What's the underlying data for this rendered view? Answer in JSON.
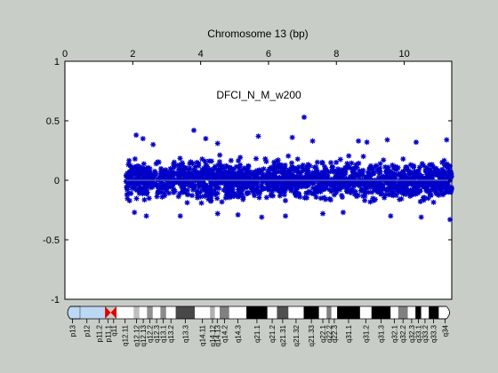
{
  "chart_data": {
    "type": "scatter",
    "title": "Chromosome 13 (bp)",
    "annotation": "DFCI_N_M_w200",
    "xlabel": "Chromosome 13 (bp)",
    "ylabel": "",
    "xlim": [
      0,
      11.4
    ],
    "ylim": [
      -1,
      1
    ],
    "x_ticks": [
      0,
      2,
      4,
      6,
      8,
      10
    ],
    "x_tick_labels": [
      "0",
      "2",
      "4",
      "6",
      "8",
      "10"
    ],
    "y_ticks": [
      1,
      0.5,
      0,
      -0.5,
      -1
    ],
    "y_tick_labels": [
      "1",
      "0.5",
      "0",
      "-0.5",
      "-1"
    ],
    "x_axis_position": "top",
    "grid": false,
    "reference_line_y": 0,
    "series": [
      {
        "marker": "asterisk",
        "color": "#0000c8",
        "x_range": [
          1.8,
          11.4
        ],
        "y_band": [
          -0.2,
          0.2
        ],
        "outliers": [
          {
            "x": 7.05,
            "y": 0.53
          },
          {
            "x": 3.8,
            "y": 0.42
          },
          {
            "x": 2.1,
            "y": 0.38
          },
          {
            "x": 2.3,
            "y": 0.35
          },
          {
            "x": 4.15,
            "y": 0.35
          },
          {
            "x": 5.7,
            "y": 0.37
          },
          {
            "x": 6.7,
            "y": 0.36
          },
          {
            "x": 7.3,
            "y": 0.33
          },
          {
            "x": 8.65,
            "y": 0.33
          },
          {
            "x": 9.5,
            "y": 0.34
          },
          {
            "x": 10.35,
            "y": 0.32
          },
          {
            "x": 11.25,
            "y": 0.34
          },
          {
            "x": 8.9,
            "y": 0.32
          },
          {
            "x": 2.6,
            "y": 0.3
          },
          {
            "x": 4.5,
            "y": 0.31
          },
          {
            "x": 2.4,
            "y": -0.3
          },
          {
            "x": 3.4,
            "y": -0.3
          },
          {
            "x": 4.5,
            "y": -0.28
          },
          {
            "x": 5.1,
            "y": -0.29
          },
          {
            "x": 5.8,
            "y": -0.31
          },
          {
            "x": 6.5,
            "y": -0.3
          },
          {
            "x": 7.6,
            "y": -0.28
          },
          {
            "x": 9.6,
            "y": -0.3
          },
          {
            "x": 10.5,
            "y": -0.31
          },
          {
            "x": 11.35,
            "y": -0.33
          },
          {
            "x": 8.2,
            "y": -0.27
          },
          {
            "x": 2.05,
            "y": -0.27
          }
        ]
      }
    ],
    "ideogram": {
      "bands": [
        {
          "name": "p13",
          "stain": "acen-light",
          "color": "#bcd8f4"
        },
        {
          "name": "p12",
          "stain": "gvar",
          "color": "#bcd8f4"
        },
        {
          "name": "p11.2",
          "stain": "stalk",
          "color": "#bcd8f4"
        },
        {
          "name": "p11.1",
          "stain": "acen",
          "color": "#e00000"
        },
        {
          "name": "q11",
          "stain": "acen",
          "color": "#e00000"
        },
        {
          "name": "q12.11",
          "stain": "gneg",
          "color": "#ffffff"
        },
        {
          "name": "q12.12",
          "stain": "gpos25",
          "color": "#c0c0c0"
        },
        {
          "name": "q12.13",
          "stain": "gneg",
          "color": "#ffffff"
        },
        {
          "name": "q12.2",
          "stain": "gpos50",
          "color": "#909090"
        },
        {
          "name": "q12.3",
          "stain": "gneg",
          "color": "#ffffff"
        },
        {
          "name": "q13.1",
          "stain": "gpos50",
          "color": "#8c8c8c"
        },
        {
          "name": "q13.2",
          "stain": "gneg",
          "color": "#ffffff"
        },
        {
          "name": "q13.3",
          "stain": "gpos75",
          "color": "#484848"
        },
        {
          "name": "q14.11",
          "stain": "gneg",
          "color": "#ffffff"
        },
        {
          "name": "q14.12",
          "stain": "gpos25",
          "color": "#b0b0b0"
        },
        {
          "name": "q14.13",
          "stain": "gneg",
          "color": "#ffffff"
        },
        {
          "name": "q14.2",
          "stain": "gpos50",
          "color": "#808080"
        },
        {
          "name": "q14.3",
          "stain": "gneg",
          "color": "#ffffff"
        },
        {
          "name": "q21.1",
          "stain": "gpos100",
          "color": "#000000"
        },
        {
          "name": "q21.2",
          "stain": "gneg",
          "color": "#ffffff"
        },
        {
          "name": "q21.31",
          "stain": "gpos75",
          "color": "#505050"
        },
        {
          "name": "q21.32",
          "stain": "gneg",
          "color": "#ffffff"
        },
        {
          "name": "q21.33",
          "stain": "gpos100",
          "color": "#000000"
        },
        {
          "name": "q22.1",
          "stain": "gneg",
          "color": "#ffffff"
        },
        {
          "name": "q22.2",
          "stain": "gpos50",
          "color": "#808080"
        },
        {
          "name": "q22.3",
          "stain": "gneg",
          "color": "#ffffff"
        },
        {
          "name": "q31.1",
          "stain": "gpos100",
          "color": "#000000"
        },
        {
          "name": "q31.2",
          "stain": "gneg",
          "color": "#ffffff"
        },
        {
          "name": "q31.3",
          "stain": "gpos100",
          "color": "#000000"
        },
        {
          "name": "q32.1",
          "stain": "gneg",
          "color": "#ffffff"
        },
        {
          "name": "q32.2",
          "stain": "gpos50",
          "color": "#808080"
        },
        {
          "name": "q32.3",
          "stain": "gneg",
          "color": "#ffffff"
        },
        {
          "name": "q33.1",
          "stain": "gpos100",
          "color": "#000000"
        },
        {
          "name": "q33.2",
          "stain": "gneg",
          "color": "#ffffff"
        },
        {
          "name": "q33.3",
          "stain": "gpos100",
          "color": "#000000"
        },
        {
          "name": "q34",
          "stain": "gneg",
          "color": "#ffffff"
        }
      ]
    }
  },
  "colors": {
    "figure_background": "#c8cdc8",
    "axes_background": "#ffffff",
    "points": "#0000c8",
    "zero_line": "#8080b0"
  }
}
